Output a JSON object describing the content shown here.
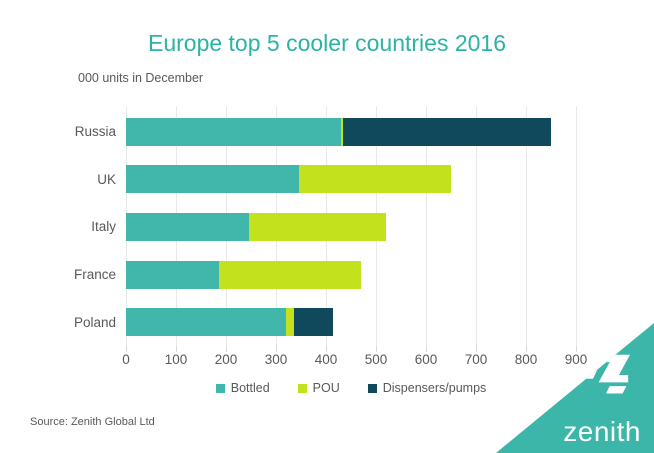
{
  "header": {
    "title": "Europe top 5 cooler countries 2016",
    "subtitle": "000 units in December"
  },
  "chart_data": {
    "type": "bar",
    "orientation": "horizontal",
    "stacked": true,
    "title": "Europe top 5 cooler countries 2016",
    "subtitle": "000 units in December",
    "categories": [
      "Russia",
      "UK",
      "Italy",
      "France",
      "Poland"
    ],
    "series": [
      {
        "name": "Bottled",
        "color": "#41b7ab",
        "values": [
          430,
          345,
          245,
          185,
          320
        ]
      },
      {
        "name": "POU",
        "color": "#c3e11c",
        "values": [
          5,
          305,
          275,
          285,
          15
        ]
      },
      {
        "name": "Dispensers/pumps",
        "color": "#10485c",
        "values": [
          415,
          0,
          0,
          0,
          80
        ]
      }
    ],
    "totals": [
      850,
      650,
      520,
      470,
      415
    ],
    "x_axis": {
      "min": 0,
      "max": 900,
      "tick_step": 100,
      "ticks": [
        0,
        100,
        200,
        300,
        400,
        500,
        600,
        700,
        800,
        900
      ]
    },
    "grid": true,
    "legend_position": "bottom"
  },
  "footer": {
    "source": "Source: Zenith Global Ltd"
  },
  "branding": {
    "logo_text": "zenith",
    "brand_color": "#3cb6a8"
  },
  "colors": {
    "title": "#2bb3a4",
    "axis_text": "#58595b",
    "gridline": "#e9e9e9"
  }
}
